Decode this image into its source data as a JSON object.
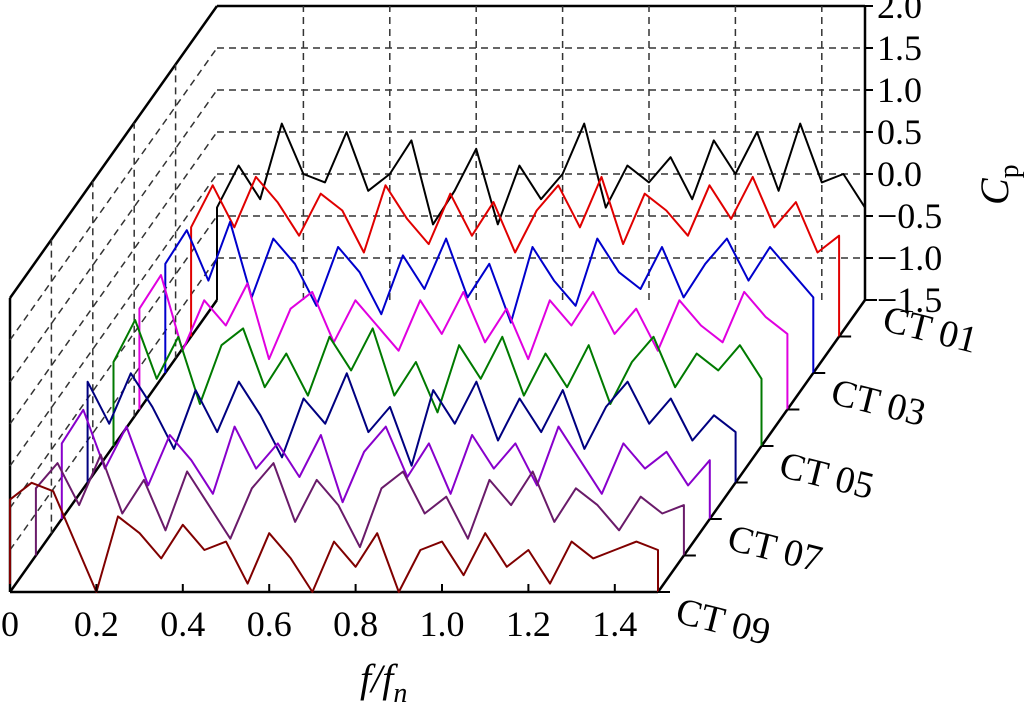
{
  "chart_data": {
    "type": "line",
    "view": "3d-waterfall",
    "x_axis": {
      "label_main": "f/f",
      "label_sub": "n",
      "range": [
        0,
        1.5
      ],
      "ticks": [
        "0",
        "0.2",
        "0.4",
        "0.6",
        "0.8",
        "1.0",
        "1.2",
        "1.4"
      ]
    },
    "z_axis": {
      "label_main": "C",
      "label_sub": "p",
      "range": [
        -1.5,
        2.0
      ],
      "ticks": [
        "2.0",
        "1.5",
        "1.0",
        "0.5",
        "0.0",
        "−0.5",
        "−1.0",
        "−1.5"
      ]
    },
    "depth_axis": {
      "ticks": [
        "CT 01",
        "CT 03",
        "CT 05",
        "CT 07",
        "CT 09"
      ]
    },
    "grid": true,
    "x": [
      0.0,
      0.05,
      0.1,
      0.15,
      0.2,
      0.25,
      0.3,
      0.35,
      0.4,
      0.45,
      0.5,
      0.55,
      0.6,
      0.65,
      0.7,
      0.75,
      0.8,
      0.85,
      0.9,
      0.95,
      1.0,
      1.05,
      1.1,
      1.15,
      1.2,
      1.25,
      1.3,
      1.35,
      1.4,
      1.45,
      1.5
    ],
    "series": [
      {
        "id": "CT01",
        "color": "#000000",
        "depth": 0.0,
        "values": [
          -0.4,
          0.1,
          -0.3,
          0.6,
          0.0,
          -0.1,
          0.5,
          -0.2,
          0.0,
          0.4,
          -0.6,
          -0.2,
          0.3,
          -0.6,
          0.1,
          -0.3,
          0.0,
          0.6,
          -0.4,
          0.1,
          -0.1,
          0.2,
          -0.3,
          0.4,
          0.0,
          0.5,
          -0.2,
          0.6,
          -0.1,
          0.0,
          -0.4
        ]
      },
      {
        "id": "CT02",
        "color": "#e00000",
        "depth": 0.125,
        "values": [
          -0.2,
          0.3,
          -0.2,
          0.4,
          0.1,
          -0.3,
          0.2,
          0.0,
          -0.5,
          0.3,
          -0.1,
          -0.4,
          0.2,
          -0.3,
          0.1,
          -0.5,
          0.0,
          0.3,
          -0.2,
          0.4,
          -0.4,
          0.2,
          0.0,
          -0.3,
          0.3,
          -0.1,
          0.4,
          -0.2,
          0.1,
          -0.5,
          -0.3
        ]
      },
      {
        "id": "CT03",
        "color": "#0000cc",
        "depth": 0.25,
        "values": [
          -0.2,
          0.2,
          -0.4,
          0.3,
          -0.6,
          0.1,
          -0.2,
          -0.7,
          0.0,
          -0.3,
          -0.8,
          -0.1,
          -0.5,
          0.1,
          -0.6,
          -0.2,
          -0.9,
          0.0,
          -0.4,
          -0.7,
          0.1,
          -0.3,
          -0.5,
          0.0,
          -0.6,
          -0.2,
          0.1,
          -0.4,
          0.0,
          -0.3,
          -0.6
        ]
      },
      {
        "id": "CT04",
        "color": "#e000e0",
        "depth": 0.375,
        "values": [
          -0.3,
          0.1,
          -0.8,
          -0.2,
          -0.5,
          0.0,
          -0.9,
          -0.3,
          -0.1,
          -0.7,
          -0.2,
          -0.5,
          -0.8,
          -0.2,
          -0.6,
          -0.1,
          -0.7,
          -0.3,
          -0.9,
          -0.2,
          -0.5,
          -0.1,
          -0.6,
          -0.3,
          -0.8,
          -0.2,
          -0.5,
          -0.7,
          -0.1,
          -0.4,
          -0.6
        ]
      },
      {
        "id": "CT05",
        "color": "#007a00",
        "depth": 0.5,
        "values": [
          -0.5,
          0.0,
          -0.7,
          -0.2,
          -1.0,
          -0.3,
          -0.1,
          -0.8,
          -0.4,
          -0.9,
          -0.2,
          -0.6,
          -0.1,
          -0.9,
          -0.5,
          -1.1,
          -0.3,
          -0.7,
          -0.2,
          -0.9,
          -0.4,
          -0.8,
          -0.3,
          -1.0,
          -0.5,
          -0.2,
          -0.8,
          -0.4,
          -0.6,
          -0.3,
          -0.7
        ]
      },
      {
        "id": "CT06",
        "color": "#000080",
        "depth": 0.625,
        "values": [
          -0.3,
          -0.8,
          -0.2,
          -0.6,
          -1.1,
          -0.4,
          -0.9,
          -0.3,
          -0.7,
          -1.2,
          -0.5,
          -0.8,
          -0.2,
          -0.9,
          -0.6,
          -1.3,
          -0.4,
          -0.8,
          -0.3,
          -1.0,
          -0.5,
          -0.9,
          -0.4,
          -1.1,
          -0.6,
          -0.3,
          -0.8,
          -0.5,
          -1.0,
          -0.7,
          -0.9
        ]
      },
      {
        "id": "CT07",
        "color": "#8800cc",
        "depth": 0.75,
        "values": [
          -0.6,
          -0.2,
          -0.9,
          -0.4,
          -1.1,
          -0.5,
          -0.8,
          -1.2,
          -0.4,
          -0.9,
          -0.6,
          -1.0,
          -0.5,
          -1.3,
          -0.7,
          -0.4,
          -1.0,
          -0.6,
          -1.2,
          -0.5,
          -0.9,
          -0.6,
          -1.1,
          -0.4,
          -0.8,
          -1.2,
          -0.6,
          -0.9,
          -0.7,
          -1.1,
          -0.8
        ]
      },
      {
        "id": "CT08",
        "color": "#6a1b6a",
        "depth": 0.875,
        "values": [
          -0.7,
          -0.4,
          -0.9,
          -0.3,
          -1.0,
          -0.6,
          -1.2,
          -0.5,
          -0.9,
          -1.3,
          -0.7,
          -0.4,
          -1.1,
          -0.6,
          -0.9,
          -1.4,
          -0.7,
          -0.5,
          -1.0,
          -0.8,
          -1.3,
          -0.6,
          -0.9,
          -0.5,
          -1.1,
          -0.7,
          -0.9,
          -1.2,
          -0.8,
          -1.0,
          -0.9
        ]
      },
      {
        "id": "CT09",
        "color": "#800000",
        "depth": 1.0,
        "values": [
          -0.4,
          -0.2,
          -0.3,
          -0.9,
          -1.5,
          -0.6,
          -0.8,
          -1.1,
          -0.7,
          -1.0,
          -0.9,
          -1.4,
          -0.8,
          -1.1,
          -1.5,
          -0.9,
          -1.2,
          -0.8,
          -1.5,
          -1.0,
          -0.9,
          -1.3,
          -0.8,
          -1.2,
          -1.0,
          -1.4,
          -0.9,
          -1.1,
          -1.0,
          -0.9,
          -1.0
        ]
      }
    ]
  }
}
